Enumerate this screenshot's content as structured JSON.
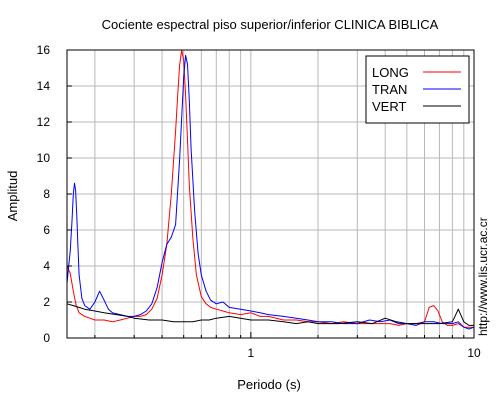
{
  "chart_data": {
    "type": "line",
    "title": "Cociente espectral piso superior/inferior  CLINICA BIBLICA",
    "xlabel": "Periodo (s)",
    "ylabel": "Amplitud",
    "x_scale": "log",
    "xlim": [
      0.15,
      10
    ],
    "ylim": [
      0,
      16
    ],
    "x_tick_labels": [
      {
        "value": 1,
        "label": "1"
      },
      {
        "value": 10,
        "label": "10"
      }
    ],
    "y_ticks": [
      0,
      2,
      4,
      6,
      8,
      10,
      12,
      14,
      16
    ],
    "grid": true,
    "legend_position": "top-right",
    "side_text": "http://www.lis.ucr.ac.cr",
    "series": [
      {
        "name": "LONG",
        "color": "#ff0000",
        "x": [
          0.15,
          0.155,
          0.16,
          0.165,
          0.17,
          0.18,
          0.19,
          0.2,
          0.21,
          0.22,
          0.24,
          0.26,
          0.28,
          0.3,
          0.32,
          0.34,
          0.36,
          0.38,
          0.4,
          0.42,
          0.44,
          0.46,
          0.47,
          0.48,
          0.49,
          0.5,
          0.51,
          0.52,
          0.53,
          0.55,
          0.57,
          0.6,
          0.63,
          0.66,
          0.7,
          0.75,
          0.8,
          0.9,
          1.0,
          1.1,
          1.2,
          1.4,
          1.6,
          1.8,
          2.0,
          2.3,
          2.6,
          3.0,
          3.4,
          3.8,
          4.2,
          4.6,
          5.0,
          5.5,
          6.0,
          6.3,
          6.6,
          6.9,
          7.2,
          7.6,
          8.0,
          8.5,
          9.0,
          9.5,
          10
        ],
        "y": [
          4.0,
          3.6,
          2.6,
          1.8,
          1.4,
          1.2,
          1.1,
          1.0,
          1.0,
          1.0,
          0.9,
          1.0,
          1.1,
          1.2,
          1.2,
          1.3,
          1.6,
          2.2,
          3.5,
          5.2,
          8.0,
          11.5,
          13.5,
          15.2,
          16.0,
          15.4,
          13.5,
          11.0,
          8.5,
          5.5,
          3.5,
          2.3,
          1.9,
          1.7,
          1.6,
          1.5,
          1.4,
          1.3,
          1.4,
          1.2,
          1.2,
          1.0,
          1.0,
          0.9,
          0.9,
          0.8,
          0.9,
          0.8,
          0.8,
          0.8,
          0.8,
          0.7,
          0.8,
          0.8,
          0.9,
          1.7,
          1.8,
          1.5,
          0.9,
          0.7,
          0.7,
          0.8,
          0.6,
          0.6,
          0.6
        ]
      },
      {
        "name": "TRAN",
        "color": "#0000ff",
        "x": [
          0.15,
          0.152,
          0.155,
          0.158,
          0.16,
          0.162,
          0.164,
          0.166,
          0.168,
          0.17,
          0.175,
          0.18,
          0.19,
          0.2,
          0.21,
          0.22,
          0.23,
          0.24,
          0.26,
          0.28,
          0.3,
          0.32,
          0.34,
          0.36,
          0.38,
          0.4,
          0.42,
          0.44,
          0.46,
          0.48,
          0.5,
          0.51,
          0.52,
          0.53,
          0.54,
          0.56,
          0.58,
          0.6,
          0.63,
          0.66,
          0.7,
          0.75,
          0.8,
          0.9,
          1.0,
          1.1,
          1.2,
          1.4,
          1.6,
          1.8,
          2.0,
          2.3,
          2.6,
          3.0,
          3.4,
          3.8,
          4.2,
          4.6,
          5.0,
          5.5,
          6.0,
          6.6,
          7.2,
          8.0,
          8.5,
          9.0,
          9.5,
          10
        ],
        "y": [
          3.0,
          3.8,
          4.8,
          6.5,
          8.0,
          8.6,
          8.2,
          6.8,
          5.0,
          3.5,
          2.2,
          1.8,
          1.6,
          2.0,
          2.6,
          2.1,
          1.6,
          1.4,
          1.3,
          1.2,
          1.2,
          1.3,
          1.5,
          1.9,
          2.8,
          4.2,
          5.2,
          5.6,
          6.3,
          10.0,
          14.5,
          15.7,
          15.2,
          13.2,
          10.5,
          7.0,
          4.7,
          3.5,
          2.6,
          2.1,
          1.9,
          2.0,
          1.7,
          1.6,
          1.5,
          1.4,
          1.3,
          1.2,
          1.1,
          1.0,
          0.9,
          0.9,
          0.8,
          0.8,
          1.0,
          0.9,
          1.0,
          0.8,
          0.8,
          0.7,
          0.9,
          0.9,
          0.8,
          0.8,
          0.9,
          0.6,
          0.5,
          0.6
        ]
      },
      {
        "name": "VERT",
        "color": "#000000",
        "x": [
          0.15,
          0.16,
          0.17,
          0.18,
          0.2,
          0.22,
          0.25,
          0.28,
          0.3,
          0.35,
          0.4,
          0.45,
          0.5,
          0.55,
          0.6,
          0.65,
          0.7,
          0.8,
          0.9,
          1.0,
          1.2,
          1.4,
          1.6,
          1.8,
          2.0,
          2.5,
          3.0,
          3.5,
          4.0,
          4.5,
          5.0,
          5.5,
          6.0,
          7.0,
          8.0,
          8.5,
          9.0,
          9.5,
          10
        ],
        "y": [
          1.9,
          1.8,
          1.7,
          1.6,
          1.5,
          1.4,
          1.3,
          1.2,
          1.1,
          1.0,
          1.0,
          0.9,
          0.9,
          0.9,
          1.0,
          1.0,
          1.1,
          1.2,
          1.1,
          1.0,
          1.0,
          0.9,
          0.8,
          0.9,
          0.8,
          0.8,
          0.9,
          0.8,
          1.1,
          0.9,
          0.8,
          0.8,
          0.8,
          0.8,
          0.9,
          1.6,
          0.9,
          0.7,
          0.7
        ]
      }
    ]
  }
}
